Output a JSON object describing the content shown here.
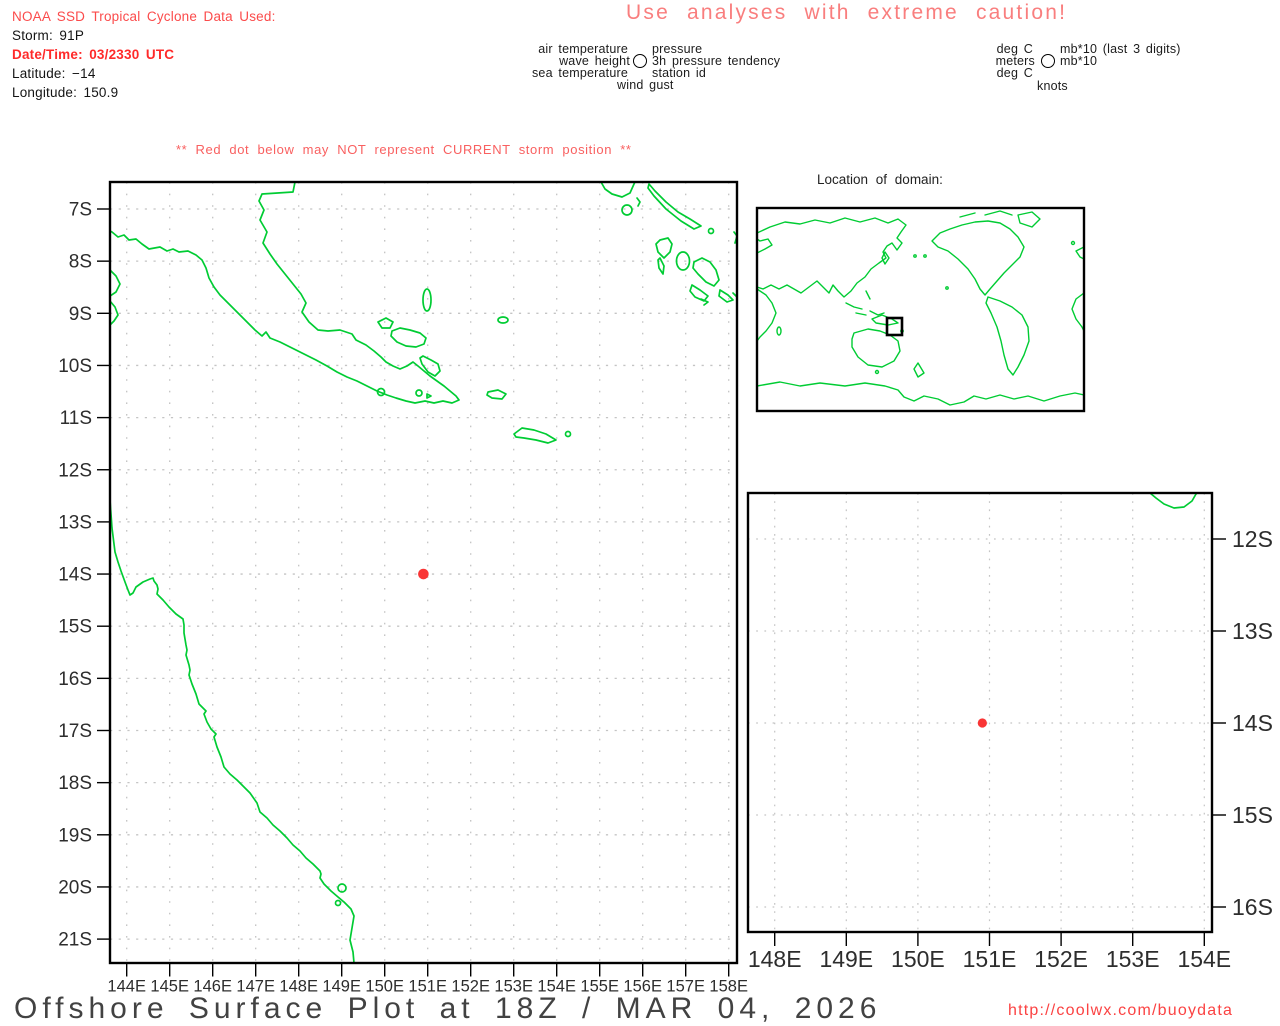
{
  "storm_info": {
    "source_line": "NOAA SSD Tropical Cyclone Data Used:",
    "storm_line": "Storm: 91P",
    "datetime_line": "Date/Time: 03/2330 UTC",
    "latitude_line": "Latitude: −14",
    "longitude_line": "Longitude: 150.9"
  },
  "caution_banner": "Use analyses with extreme caution!",
  "station_legend": {
    "air_temperature": "air temperature",
    "pressure": "pressure",
    "wave_height": "wave height",
    "pressure_tendency": "3h pressure tendency",
    "sea_temperature": "sea temperature",
    "station_id": "station id",
    "wind_gust": "wind gust"
  },
  "units_legend": {
    "air_temperature_units": "deg C",
    "pressure_units": "mb*10 (last 3 digits)",
    "wave_height_units": "meters",
    "pressure_tendency_units": "mb*10",
    "sea_temperature_units": "deg C",
    "wind_gust_units": "knots"
  },
  "warning_note": "** Red dot below may NOT represent CURRENT storm position **",
  "world_inset": {
    "title": "Location of domain:"
  },
  "storm": {
    "id": "91P",
    "lat": -14,
    "lon": 150.9
  },
  "chart_data": {
    "type": "map-plot",
    "main_map": {
      "lon_ticks": [
        "144E",
        "145E",
        "146E",
        "147E",
        "148E",
        "149E",
        "150E",
        "151E",
        "152E",
        "153E",
        "154E",
        "155E",
        "156E",
        "157E",
        "158E"
      ],
      "lat_ticks": [
        "7S",
        "8S",
        "9S",
        "10S",
        "11S",
        "12S",
        "13S",
        "14S",
        "15S",
        "16S",
        "17S",
        "18S",
        "19S",
        "20S",
        "21S"
      ],
      "lon_range": [
        143.6,
        158.3
      ],
      "lat_range": [
        -21.5,
        -6.5
      ],
      "storm_point": {
        "lon": 150.9,
        "lat": -14
      }
    },
    "detail_map": {
      "lon_ticks": [
        "148E",
        "149E",
        "150E",
        "151E",
        "152E",
        "153E",
        "154E"
      ],
      "lat_ticks": [
        "12S",
        "13S",
        "14S",
        "15S",
        "16S"
      ],
      "lon_range": [
        147.6,
        154.1
      ],
      "lat_range": [
        -16.3,
        -11.5
      ],
      "storm_point": {
        "lon": 150.9,
        "lat": -14
      }
    }
  },
  "footer": {
    "title": "Offshore Surface Plot at 18Z / MAR 04, 2026",
    "url": "http://coolwx.com/buoydata"
  },
  "colors": {
    "coastline": "#00cc33",
    "storm_dot": "#f93535",
    "header_red": "#fb4b4b",
    "datetime_red": "#ff2a2a",
    "caution_red": "#f97e7e",
    "warning_red": "#f96060",
    "url_red": "#fb4242",
    "grid_gray": "#c4c4c4"
  }
}
